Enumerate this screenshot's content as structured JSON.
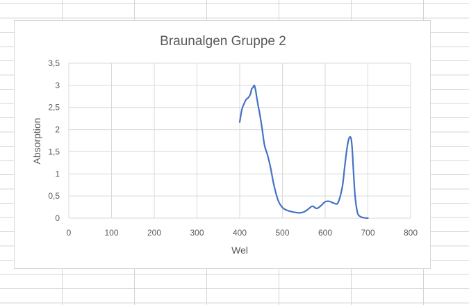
{
  "chart_data": {
    "type": "line",
    "title": "Braunalgen Gruppe 2",
    "xlabel": "Wel",
    "ylabel": "Absorption",
    "xlim": [
      0,
      800
    ],
    "ylim": [
      0,
      3.5
    ],
    "x_ticks": [
      "0",
      "100",
      "200",
      "300",
      "400",
      "500",
      "600",
      "700",
      "800"
    ],
    "y_ticks": [
      "0",
      "0,5",
      "1",
      "1,5",
      "2",
      "2,5",
      "3",
      "3,5"
    ],
    "x_tick_values": [
      0,
      100,
      200,
      300,
      400,
      500,
      600,
      700,
      800
    ],
    "y_tick_values": [
      0,
      0.5,
      1,
      1.5,
      2,
      2.5,
      3,
      3.5
    ],
    "grid": true,
    "legend": "none",
    "series": [
      {
        "color": "#4472c4",
        "x": [
          400,
          405,
          410,
          415,
          420,
          425,
          428,
          431,
          434,
          437,
          440,
          443,
          447,
          452,
          458,
          465,
          472,
          480,
          490,
          500,
          510,
          520,
          530,
          540,
          550,
          560,
          570,
          580,
          590,
          600,
          610,
          620,
          630,
          640,
          645,
          650,
          655,
          660,
          663,
          666,
          670,
          675,
          680,
          690,
          700
        ],
        "y": [
          2.17,
          2.45,
          2.58,
          2.68,
          2.72,
          2.8,
          2.92,
          2.95,
          3.0,
          2.9,
          2.72,
          2.55,
          2.35,
          2.05,
          1.65,
          1.43,
          1.15,
          0.75,
          0.4,
          0.24,
          0.18,
          0.15,
          0.13,
          0.12,
          0.14,
          0.2,
          0.27,
          0.22,
          0.28,
          0.37,
          0.38,
          0.34,
          0.35,
          0.7,
          1.1,
          1.5,
          1.78,
          1.82,
          1.6,
          1.1,
          0.5,
          0.15,
          0.05,
          0.01,
          0.0
        ]
      }
    ]
  }
}
